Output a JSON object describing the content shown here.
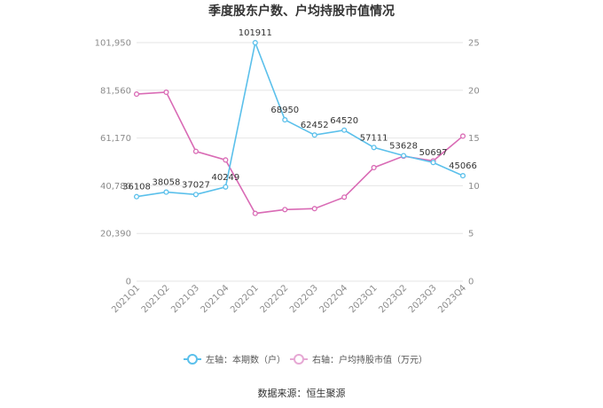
{
  "chart_data": {
    "type": "line",
    "title": "季度股东户数、户均持股市值情况",
    "categories": [
      "2021Q1",
      "2021Q2",
      "2021Q3",
      "2021Q4",
      "2022Q1",
      "2022Q2",
      "2022Q3",
      "2022Q4",
      "2023Q1",
      "2023Q2",
      "2023Q3",
      "2023Q4"
    ],
    "y_left": {
      "ylim": [
        0,
        101950
      ],
      "ticks": [
        "0",
        "20,390",
        "40,780",
        "61,170",
        "81,560",
        "101,950"
      ],
      "tick_values": [
        0,
        20390,
        40780,
        61170,
        81560,
        101950
      ]
    },
    "y_right": {
      "ylim": [
        0,
        25
      ],
      "ticks": [
        "0",
        "5",
        "10",
        "15",
        "20",
        "25"
      ],
      "tick_values": [
        0,
        5,
        10,
        15,
        20,
        25
      ]
    },
    "series": [
      {
        "name": "左轴：本期数（户）",
        "axis": "left",
        "color": "#5bc0eb",
        "values": [
          36108,
          38058,
          37027,
          40249,
          101911,
          68950,
          62452,
          64520,
          57111,
          53628,
          50697,
          45066
        ],
        "labels": [
          "36108",
          "38058",
          "37027",
          "40249",
          "101911",
          "68950",
          "62452",
          "64520",
          "57111",
          "53628",
          "50697",
          "45066"
        ]
      },
      {
        "name": "右轴：户均持股市值（万元）",
        "axis": "right",
        "color": "#d96bb5",
        "values": [
          19.6,
          19.8,
          13.6,
          12.7,
          7.1,
          7.5,
          7.6,
          8.8,
          11.9,
          13.1,
          12.6,
          15.2
        ]
      }
    ],
    "legend_position": "bottom",
    "grid": true
  },
  "source_text": "数据来源：恒生聚源"
}
